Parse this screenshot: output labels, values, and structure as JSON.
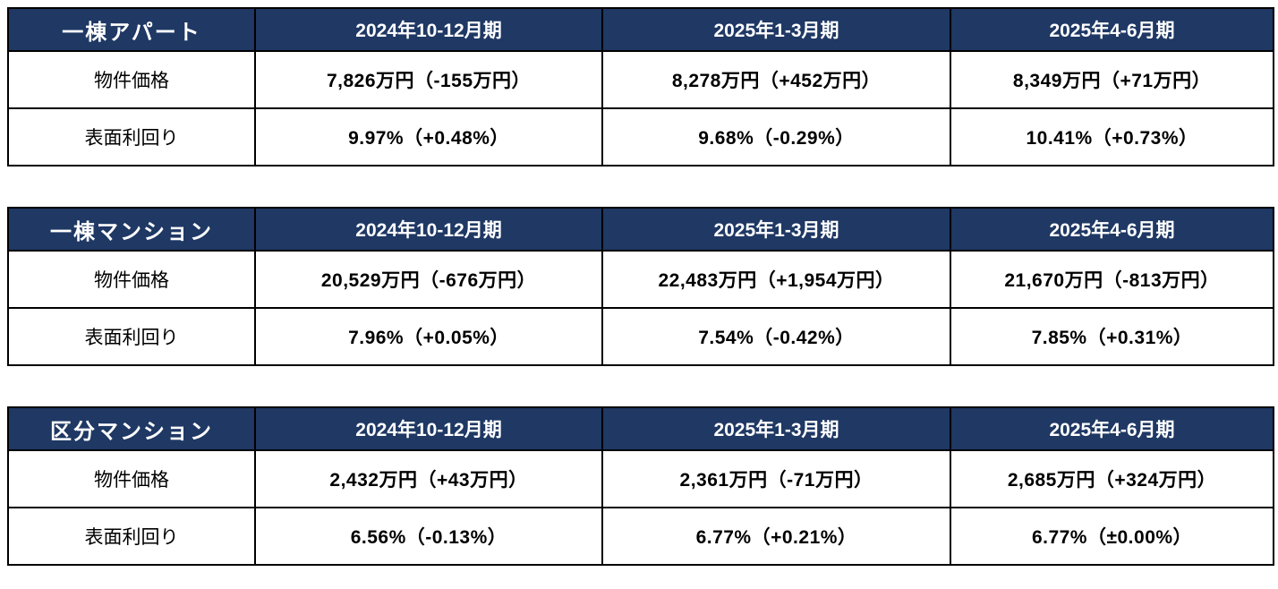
{
  "colors": {
    "header_bg": "#1F3864",
    "header_text": "#FFFFFF",
    "border": "#000000",
    "body_bg": "#FFFFFF",
    "value_text": "#000000"
  },
  "chart_data": [
    {
      "type": "table",
      "category": "一棟アパート",
      "columns": [
        "2024年10-12月期",
        "2025年1-3月期",
        "2025年4-6月期"
      ],
      "rows": [
        {
          "label": "物件価格",
          "values": [
            "7,826万円（-155万円）",
            "8,278万円（+452万円）",
            "8,349万円（+71万円）"
          ]
        },
        {
          "label": "表面利回り",
          "values": [
            "9.97%（+0.48%）",
            "9.68%（-0.29%）",
            "10.41%（+0.73%）"
          ]
        }
      ]
    },
    {
      "type": "table",
      "category": "一棟マンション",
      "columns": [
        "2024年10-12月期",
        "2025年1-3月期",
        "2025年4-6月期"
      ],
      "rows": [
        {
          "label": "物件価格",
          "values": [
            "20,529万円（-676万円）",
            "22,483万円（+1,954万円）",
            "21,670万円（-813万円）"
          ]
        },
        {
          "label": "表面利回り",
          "values": [
            "7.96%（+0.05%）",
            "7.54%（-0.42%）",
            "7.85%（+0.31%）"
          ]
        }
      ]
    },
    {
      "type": "table",
      "category": "区分マンション",
      "columns": [
        "2024年10-12月期",
        "2025年1-3月期",
        "2025年4-6月期"
      ],
      "rows": [
        {
          "label": "物件価格",
          "values": [
            "2,432万円（+43万円）",
            "2,361万円（-71万円）",
            "2,685万円（+324万円）"
          ]
        },
        {
          "label": "表面利回り",
          "values": [
            "6.56%（-0.13%）",
            "6.77%（+0.21%）",
            "6.77%（±0.00%）"
          ]
        }
      ]
    }
  ]
}
